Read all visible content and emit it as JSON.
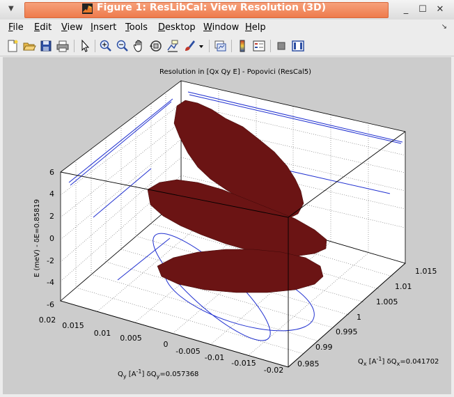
{
  "window": {
    "title": "Figure 1: ResLibCal: View Resolution (3D)"
  },
  "menubar": {
    "items": [
      {
        "label": "File",
        "mnemonic": "F",
        "rest": "ile"
      },
      {
        "label": "Edit",
        "mnemonic": "E",
        "rest": "dit"
      },
      {
        "label": "View",
        "mnemonic": "V",
        "rest": "iew"
      },
      {
        "label": "Insert",
        "mnemonic": "I",
        "rest": "nsert"
      },
      {
        "label": "Tools",
        "mnemonic": "T",
        "rest": "ools"
      },
      {
        "label": "Desktop",
        "mnemonic": "D",
        "rest": "esktop"
      },
      {
        "label": "Window",
        "mnemonic": "W",
        "rest": "indow"
      },
      {
        "label": "Help",
        "mnemonic": "H",
        "rest": "elp"
      }
    ]
  },
  "toolbar": {
    "buttons": [
      {
        "name": "new-figure-icon"
      },
      {
        "name": "open-file-icon"
      },
      {
        "name": "save-icon"
      },
      {
        "name": "print-icon"
      },
      {
        "name": "edit-plot-arrow-icon"
      },
      {
        "name": "zoom-in-icon"
      },
      {
        "name": "zoom-out-icon"
      },
      {
        "name": "pan-hand-icon"
      },
      {
        "name": "rotate-3d-icon"
      },
      {
        "name": "data-cursor-icon"
      },
      {
        "name": "brush-icon"
      },
      {
        "name": "brush-dropdown-icon"
      },
      {
        "name": "link-plot-icon"
      },
      {
        "name": "colorbar-icon"
      },
      {
        "name": "legend-icon"
      },
      {
        "name": "hide-plot-tools-icon"
      },
      {
        "name": "show-plot-tools-icon"
      }
    ]
  },
  "chart_data": {
    "type": "surface-3d",
    "title": "Resolution in [Qx Qy E] - Popovici (ResCal5)",
    "xlabel_main": "Q",
    "xlabel_sub": "x",
    "xlabel_unit_a": " [A",
    "xlabel_unit_sup": "-1",
    "xlabel_unit_b": "] δQ",
    "xlabel_sub2": "x",
    "xlabel_value": "=0.041702",
    "ylabel_main": "Q",
    "ylabel_sub": "y",
    "ylabel_unit_a": " [A",
    "ylabel_unit_sup": "-1",
    "ylabel_unit_b": "] δQ",
    "ylabel_sub2": "y",
    "ylabel_value": "=0.057368",
    "zlabel": "E (meV) - δE=0.85819",
    "x_ticks": [
      "0.985",
      "0.99",
      "0.995",
      "1",
      "1.005",
      "1.01",
      "1.015"
    ],
    "y_ticks": [
      "0.02",
      "0.015",
      "0.01",
      "0.005",
      "0",
      "-0.005",
      "-0.01",
      "-0.015",
      "-0.02"
    ],
    "z_ticks": [
      "6",
      "4",
      "2",
      "0",
      "-2",
      "-4",
      "-6"
    ],
    "xlim": [
      0.985,
      1.015
    ],
    "ylim": [
      -0.02,
      0.02
    ],
    "zlim": [
      -6,
      6
    ],
    "grid": true,
    "surface_color": "#6b1414",
    "projection_color": "#1f2fd0",
    "background_color": "#cccccc",
    "axes_color": "#ffffff"
  }
}
